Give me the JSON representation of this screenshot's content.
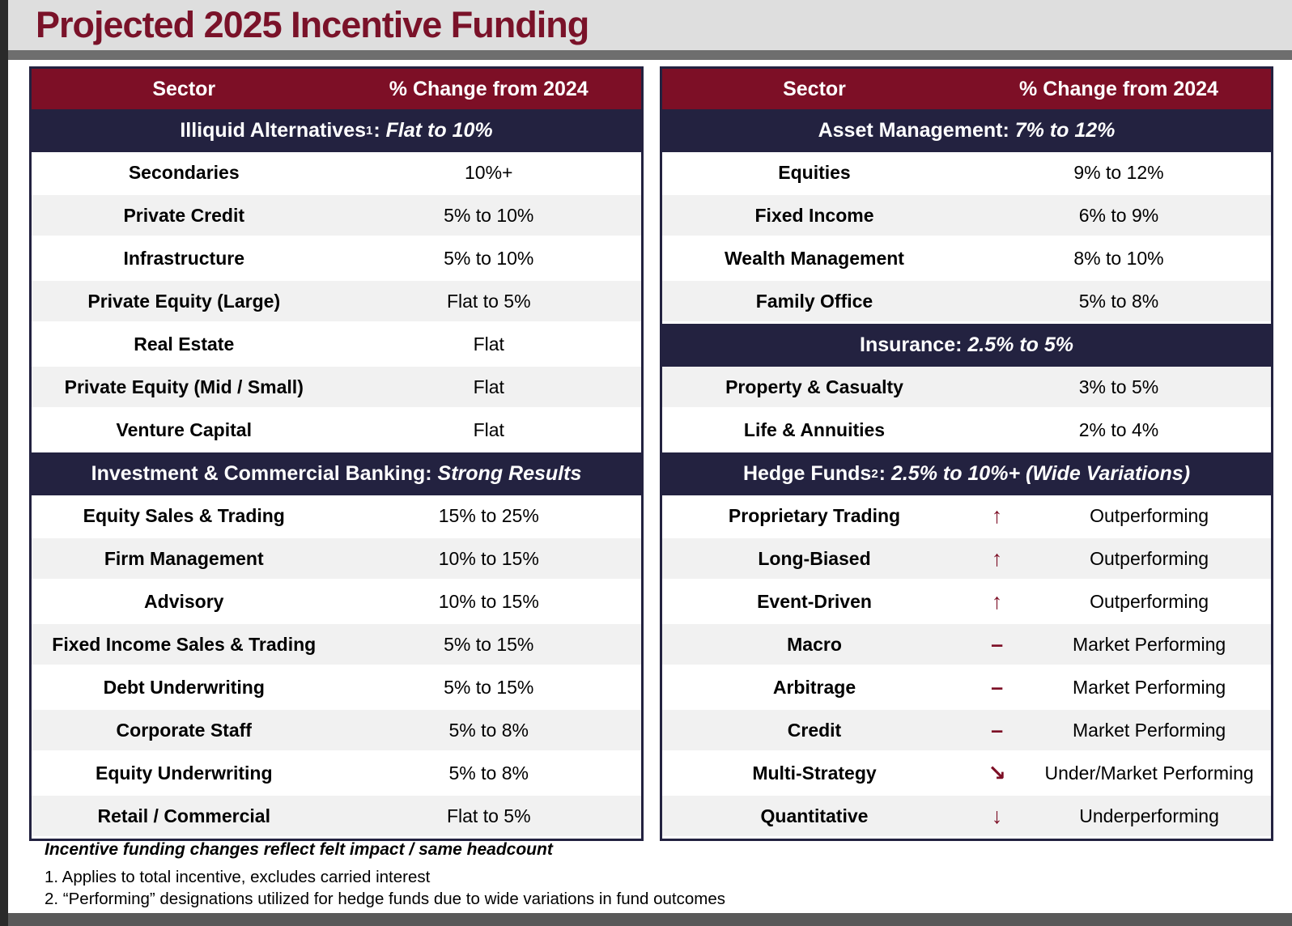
{
  "title": "Projected 2025 Incentive Funding",
  "colors": {
    "maroon_header": "#7d0f26",
    "navy_section": "#232240",
    "title_text": "#7a1229",
    "title_band": "#dedede",
    "divider_bar": "#6e6e6e",
    "edge_strip": "#2a2a2a",
    "footer_bar": "#595959",
    "row_alt": "#f1f1f1",
    "arrow": "#7d0f26"
  },
  "tables": [
    {
      "headers": [
        "Sector",
        "% Change from 2024"
      ],
      "sections": [
        {
          "name": "Illiquid Alternatives",
          "sup": "1",
          "italic": "Flat to 10%",
          "rows": [
            {
              "sector": "Secondaries",
              "value": "10%+"
            },
            {
              "sector": "Private Credit",
              "value": "5% to 10%"
            },
            {
              "sector": "Infrastructure",
              "value": "5% to 10%"
            },
            {
              "sector": "Private Equity (Large)",
              "value": "Flat to 5%"
            },
            {
              "sector": "Real Estate",
              "value": "Flat"
            },
            {
              "sector": "Private Equity (Mid / Small)",
              "value": "Flat"
            },
            {
              "sector": "Venture Capital",
              "value": "Flat"
            }
          ]
        },
        {
          "name": "Investment & Commercial Banking",
          "sup": "",
          "italic": "Strong Results",
          "rows": [
            {
              "sector": "Equity Sales & Trading",
              "value": "15% to 25%"
            },
            {
              "sector": "Firm Management",
              "value": "10% to 15%"
            },
            {
              "sector": "Advisory",
              "value": "10% to 15%"
            },
            {
              "sector": "Fixed Income Sales & Trading",
              "value": "5% to 15%"
            },
            {
              "sector": "Debt Underwriting",
              "value": "5% to 15%"
            },
            {
              "sector": "Corporate Staff",
              "value": "5% to 8%"
            },
            {
              "sector": "Equity Underwriting",
              "value": "5% to 8%"
            },
            {
              "sector": "Retail / Commercial",
              "value": "Flat to 5%"
            }
          ]
        }
      ]
    },
    {
      "headers": [
        "Sector",
        "% Change from 2024"
      ],
      "sections": [
        {
          "name": "Asset Management",
          "sup": "",
          "italic": "7% to 12%",
          "rows": [
            {
              "sector": "Equities",
              "value": "9% to 12%"
            },
            {
              "sector": "Fixed Income",
              "value": "6% to 9%"
            },
            {
              "sector": "Wealth Management",
              "value": "8% to 10%"
            },
            {
              "sector": "Family Office",
              "value": "5% to 8%"
            }
          ]
        },
        {
          "name": "Insurance",
          "sup": "",
          "italic": "2.5% to 5%",
          "invert_stripes": true,
          "rows": [
            {
              "sector": "Property & Casualty",
              "value": "3% to 5%"
            },
            {
              "sector": "Life & Annuities",
              "value": "2% to 4%"
            }
          ]
        },
        {
          "name": "Hedge Funds",
          "sup": "2",
          "italic": "2.5% to 10%+ (Wide Variations)",
          "rows": [
            {
              "sector": "Proprietary Trading",
              "arrow": "↑",
              "value": "Outperforming"
            },
            {
              "sector": "Long-Biased",
              "arrow": "↑",
              "value": "Outperforming"
            },
            {
              "sector": "Event-Driven",
              "arrow": "↑",
              "value": "Outperforming"
            },
            {
              "sector": "Macro",
              "arrow": "–",
              "value": "Market Performing"
            },
            {
              "sector": "Arbitrage",
              "arrow": "–",
              "value": "Market Performing"
            },
            {
              "sector": "Credit",
              "arrow": "–",
              "value": "Market Performing"
            },
            {
              "sector": "Multi-Strategy",
              "arrow": "↘",
              "value": "Under/Market Performing"
            },
            {
              "sector": "Quantitative",
              "arrow": "↓",
              "value": "Underperforming"
            }
          ]
        }
      ]
    }
  ],
  "footnotes": {
    "emphasis": "Incentive funding changes reflect felt impact / same headcount",
    "notes": [
      "1. Applies to total incentive, excludes carried interest",
      "2. “Performing” designations utilized for hedge funds due to wide variations in fund outcomes"
    ]
  }
}
